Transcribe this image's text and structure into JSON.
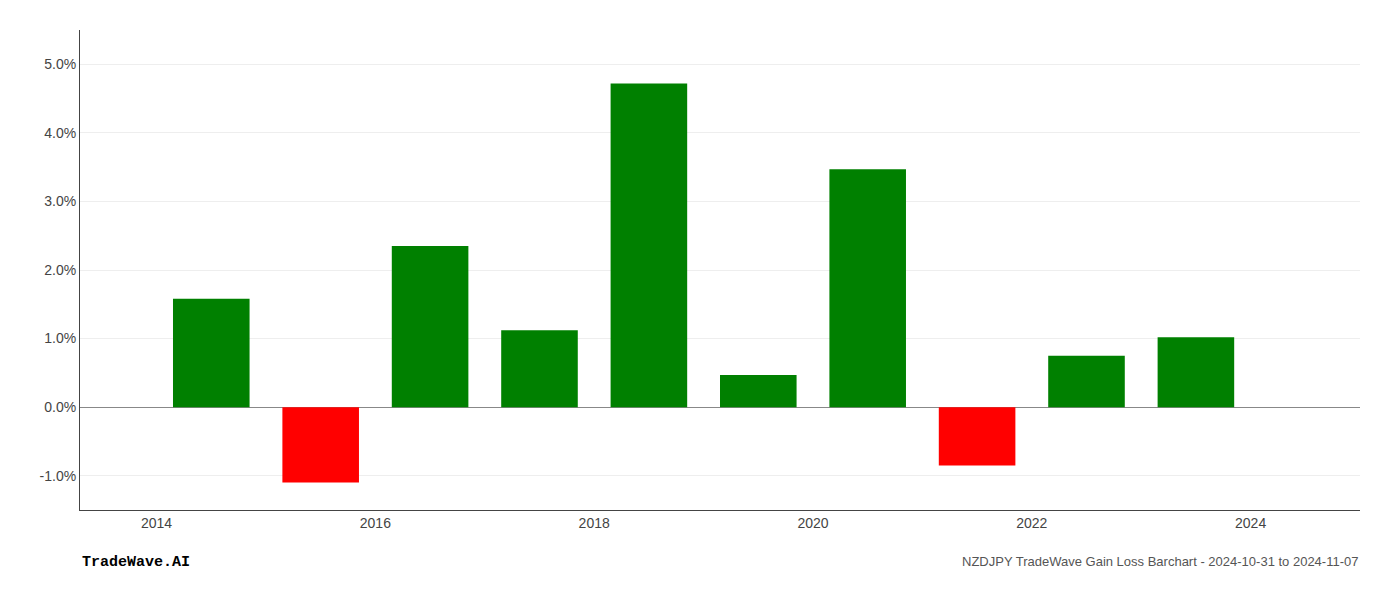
{
  "chart_data": {
    "type": "bar",
    "x": [
      2014.5,
      2015.5,
      2016.5,
      2017.5,
      2018.5,
      2019.5,
      2020.5,
      2021.5,
      2022.5,
      2023.5
    ],
    "values": [
      1.58,
      -1.1,
      2.35,
      1.12,
      4.72,
      0.47,
      3.47,
      -0.85,
      0.75,
      1.02
    ],
    "colors": [
      "#008000",
      "#ff0000",
      "#008000",
      "#008000",
      "#008000",
      "#008000",
      "#008000",
      "#ff0000",
      "#008000",
      "#008000"
    ],
    "xlim": [
      2013.3,
      2025.0
    ],
    "xticks": [
      2014,
      2016,
      2018,
      2020,
      2022,
      2024
    ],
    "ylim": [
      -1.5,
      5.5
    ],
    "yticks": [
      {
        "value": -1.0,
        "label": "-1.0%"
      },
      {
        "value": 0.0,
        "label": "0.0%"
      },
      {
        "value": 1.0,
        "label": "1.0%"
      },
      {
        "value": 2.0,
        "label": "2.0%"
      },
      {
        "value": 3.0,
        "label": "3.0%"
      },
      {
        "value": 4.0,
        "label": "4.0%"
      },
      {
        "value": 5.0,
        "label": "5.0%"
      }
    ],
    "grid": true,
    "annotations": [
      "TradeWave.AI",
      "NZDJPY TradeWave Gain Loss Barchart - 2024-10-31 to 2024-11-07"
    ]
  }
}
